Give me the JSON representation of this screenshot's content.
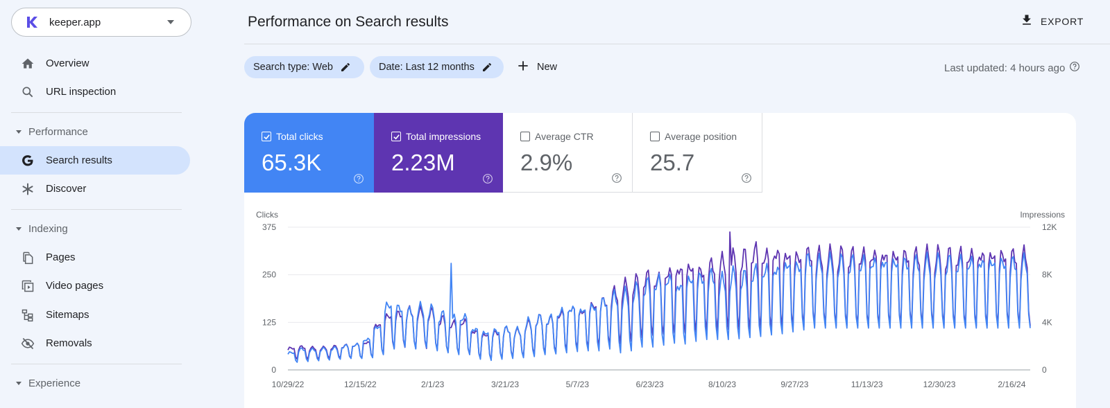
{
  "sidebar": {
    "property": {
      "name": "keeper.app",
      "logo_letter": "K"
    },
    "items": [
      {
        "label": "Overview",
        "icon": "home-icon"
      },
      {
        "label": "URL inspection",
        "icon": "search-icon"
      }
    ],
    "sections": [
      {
        "label": "Performance",
        "items": [
          {
            "label": "Search results",
            "icon": "google-g-icon",
            "active": true
          },
          {
            "label": "Discover",
            "icon": "asterisk-icon"
          }
        ]
      },
      {
        "label": "Indexing",
        "items": [
          {
            "label": "Pages",
            "icon": "pages-icon"
          },
          {
            "label": "Video pages",
            "icon": "video-pages-icon"
          },
          {
            "label": "Sitemaps",
            "icon": "sitemap-icon"
          },
          {
            "label": "Removals",
            "icon": "eye-off-icon"
          }
        ]
      },
      {
        "label": "Experience"
      }
    ]
  },
  "header": {
    "title": "Performance on Search results",
    "export_label": "EXPORT"
  },
  "filters": {
    "chips": [
      {
        "label": "Search type: Web"
      },
      {
        "label": "Date: Last 12 months"
      }
    ],
    "new_label": "New",
    "last_updated": "Last updated: 4 hours ago"
  },
  "metrics": [
    {
      "label": "Total clicks",
      "value": "65.3K",
      "checked": true,
      "color": "#4285f4"
    },
    {
      "label": "Total impressions",
      "value": "2.23M",
      "checked": true,
      "color": "#5e35b1"
    },
    {
      "label": "Average CTR",
      "value": "2.9%",
      "checked": false
    },
    {
      "label": "Average position",
      "value": "25.7",
      "checked": false
    }
  ],
  "chart_data": {
    "type": "line",
    "ylabel_left": "Clicks",
    "ylabel_right": "Impressions",
    "y_left_ticks": [
      "0",
      "125",
      "250",
      "375"
    ],
    "y_right_ticks": [
      "0",
      "4K",
      "8K",
      "12K"
    ],
    "ylim_left": [
      0,
      375
    ],
    "ylim_right": [
      0,
      12000
    ],
    "x_ticks": [
      "10/29/22",
      "12/15/22",
      "2/1/23",
      "3/21/23",
      "5/7/23",
      "6/23/23",
      "8/10/23",
      "9/27/23",
      "11/13/23",
      "12/30/23",
      "2/16/24"
    ],
    "start_date": "2022-10-29",
    "days_per_tick": 47,
    "series": [
      {
        "name": "Clicks",
        "axis": "left",
        "color": "#4285f4",
        "weekly_peak": [
          50,
          60,
          58,
          60,
          62,
          68,
          72,
          88,
          125,
          190,
          180,
          170,
          180,
          175,
          160,
          150,
          155,
          120,
          110,
          115,
          120,
          115,
          140,
          150,
          150,
          170,
          180,
          175,
          185,
          200,
          215,
          220,
          235,
          250,
          260,
          265,
          245,
          265,
          270,
          275,
          260,
          275,
          270,
          285,
          290,
          290,
          305,
          300,
          320,
          310
        ],
        "weekly_trough": [
          20,
          22,
          24,
          26,
          28,
          30,
          30,
          32,
          40,
          55,
          60,
          55,
          58,
          50,
          45,
          40,
          40,
          28,
          25,
          28,
          30,
          32,
          35,
          40,
          42,
          45,
          48,
          50,
          50,
          55,
          45,
          50,
          60,
          60,
          65,
          70,
          68,
          75,
          80,
          80,
          80,
          82,
          85,
          88,
          92,
          95,
          100,
          105,
          110,
          110
        ],
        "spikes": [
          {
            "week": 15.2,
            "value": 280
          }
        ]
      },
      {
        "name": "Impressions",
        "axis": "right",
        "color": "#5e35b1",
        "weekly_peak": [
          2000,
          2100,
          2000,
          2000,
          2100,
          2200,
          2300,
          2500,
          4200,
          5000,
          5200,
          5500,
          5400,
          5300,
          4700,
          4300,
          4500,
          3600,
          3300,
          3500,
          3800,
          3600,
          4300,
          4800,
          4700,
          5200,
          5700,
          5400,
          6000,
          6400,
          7200,
          7800,
          8200,
          8600,
          8400,
          9000,
          9300,
          9500,
          9100,
          9700,
          10000,
          10300,
          10500,
          11000,
          10600,
          10800,
          10600,
          10500,
          10800,
          10600
        ],
        "weekly_trough": [
          900,
          900,
          900,
          1000,
          1000,
          1000,
          1000,
          1100,
          1300,
          1800,
          1900,
          1800,
          1800,
          1700,
          1500,
          1400,
          1300,
          1000,
          900,
          950,
          1050,
          1100,
          1300,
          1400,
          1500,
          1700,
          1800,
          1900,
          2000,
          2100,
          2200,
          2400,
          2700,
          2900,
          3000,
          3100,
          3100,
          3200,
          3300,
          3300,
          3400,
          3400,
          3400,
          3500,
          3500,
          3600,
          3600,
          3600,
          3700,
          3700
        ],
        "spikes": [
          {
            "week": 41.0,
            "value": 11600
          }
        ]
      }
    ]
  }
}
